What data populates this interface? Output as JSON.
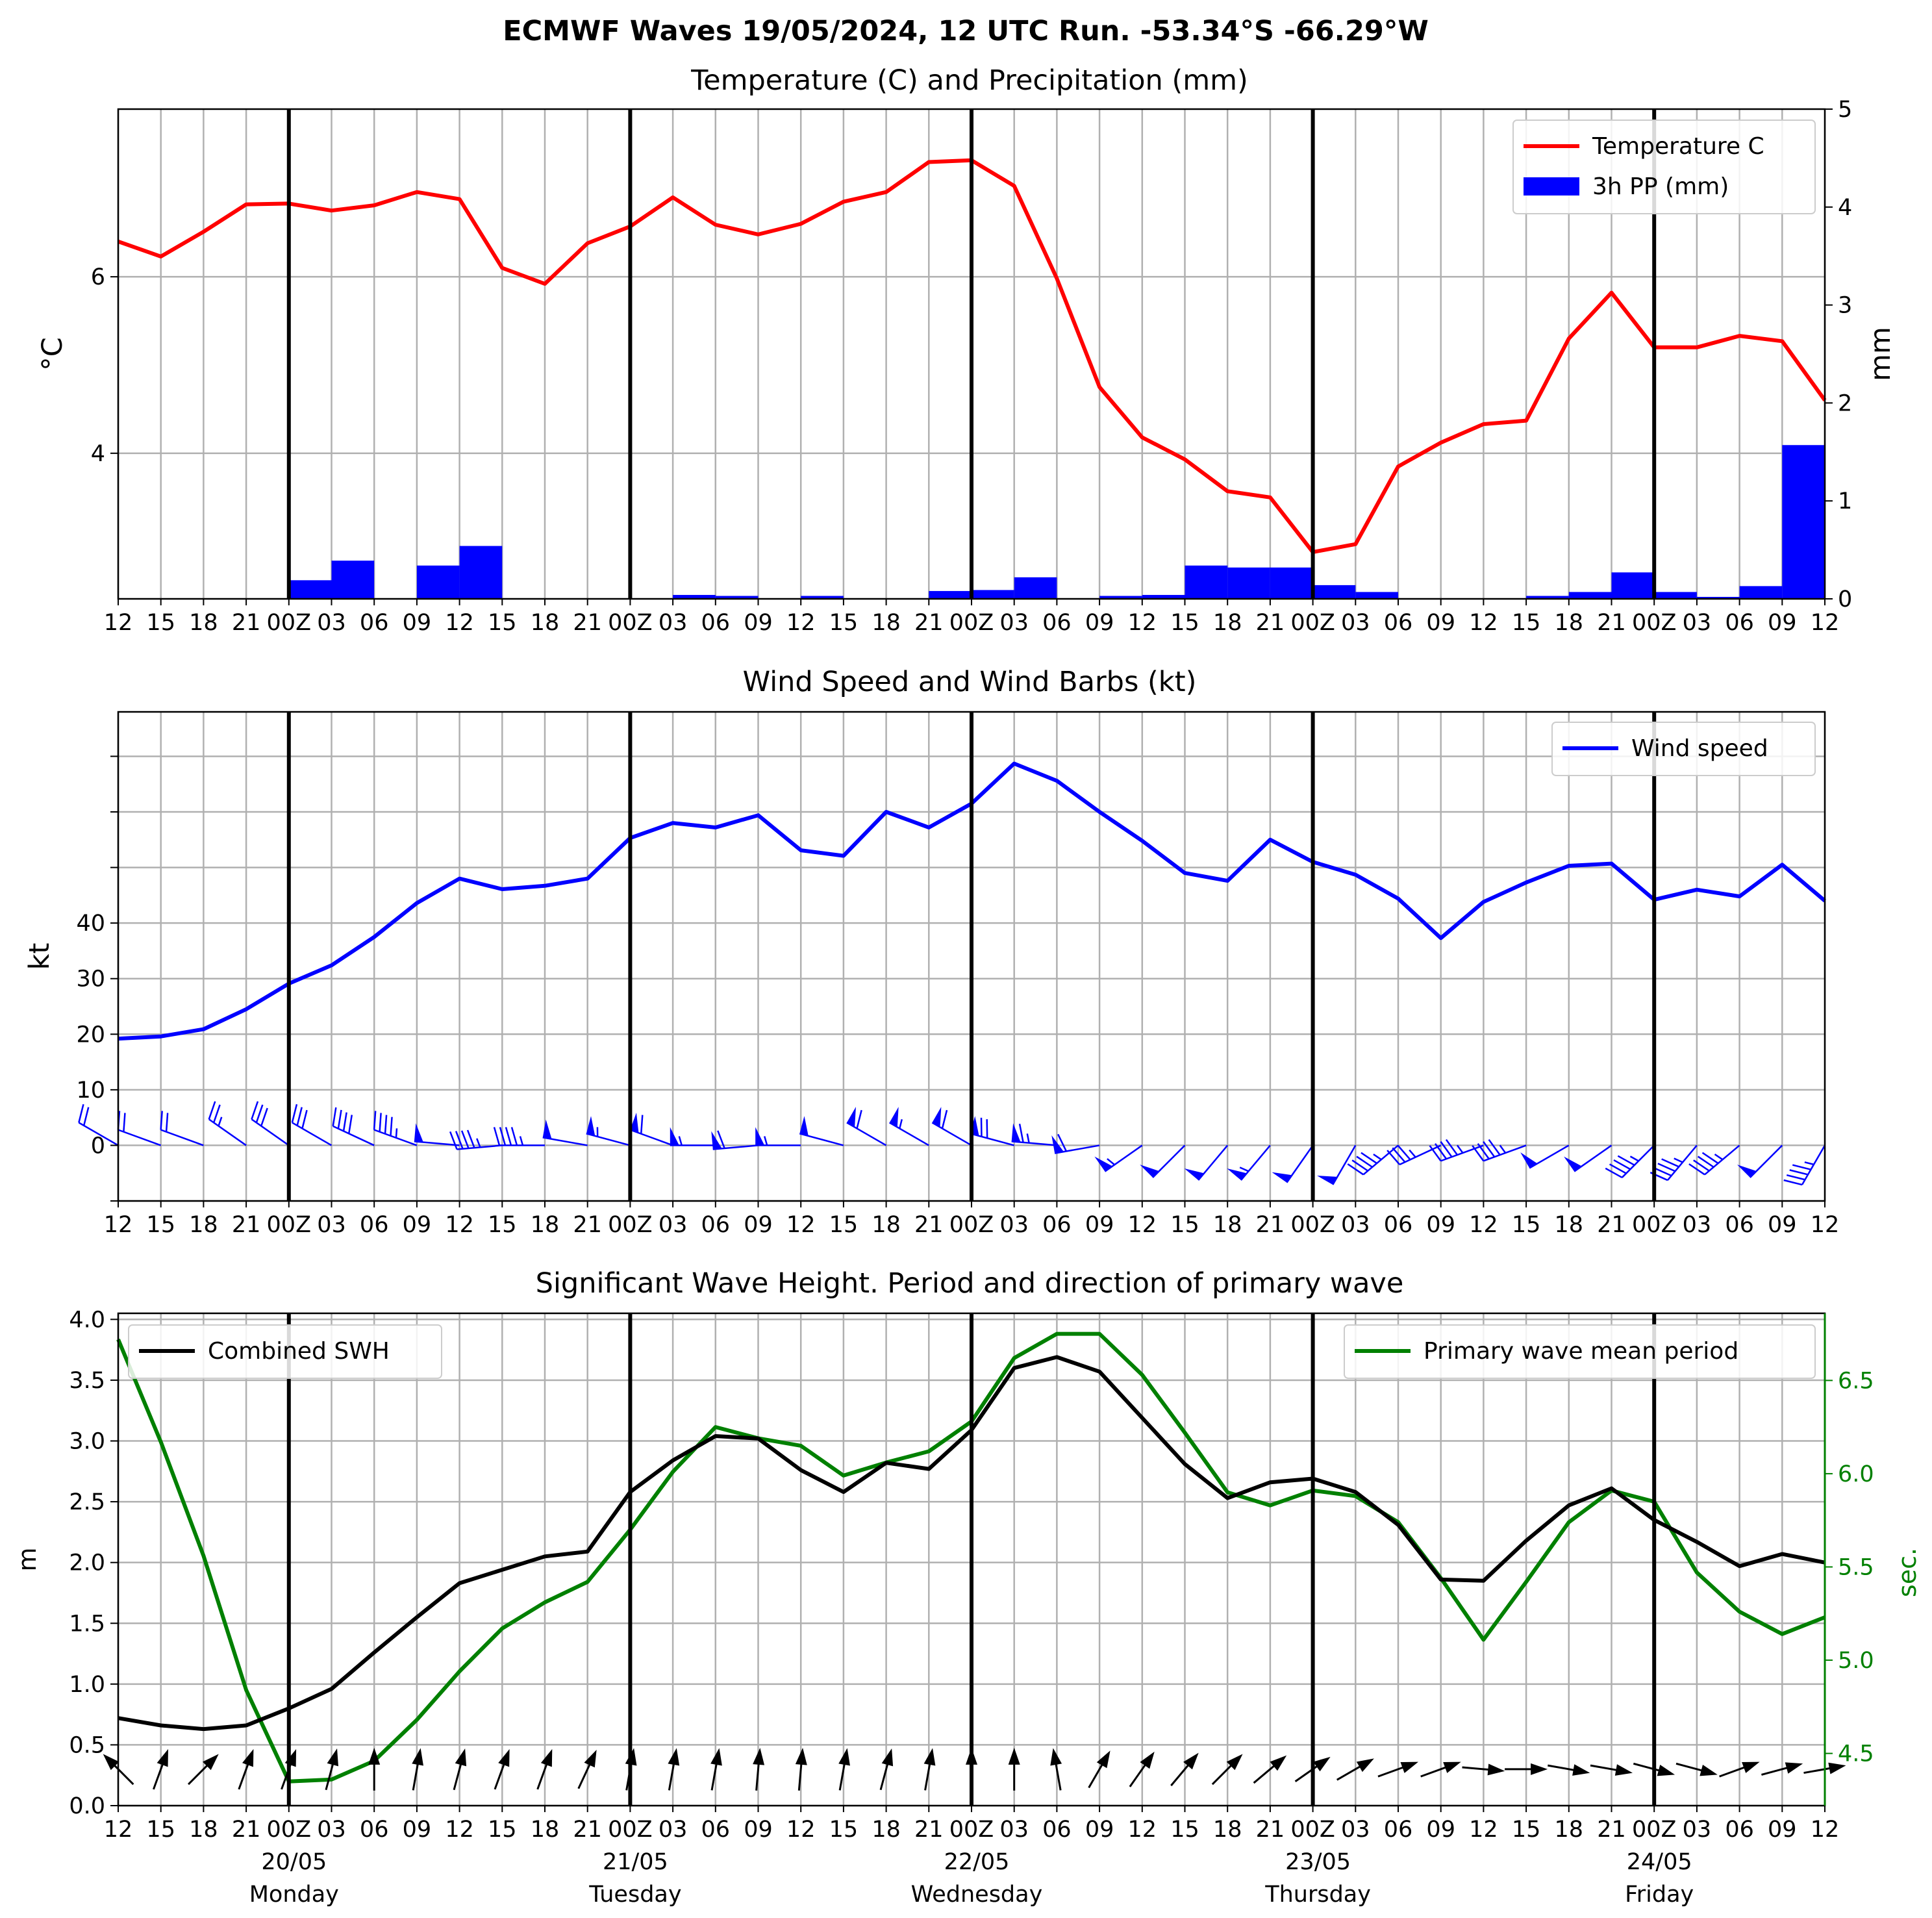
{
  "title": "ECMWF Waves 19/05/2024, 12 UTC Run. -53.34°S -66.29°W",
  "hour_ticks": [
    "12",
    "15",
    "18",
    "21",
    "00Z",
    "03",
    "06",
    "09",
    "12",
    "15",
    "18",
    "21",
    "00Z",
    "03",
    "06",
    "09",
    "12",
    "15",
    "18",
    "21",
    "00Z",
    "03",
    "06",
    "09",
    "12",
    "15",
    "18",
    "21",
    "00Z",
    "03",
    "06",
    "09",
    "12",
    "15",
    "18",
    "21",
    "00Z",
    "03",
    "06",
    "09",
    "12"
  ],
  "day_labels": [
    {
      "date": "20/05",
      "weekday": "Monday"
    },
    {
      "date": "21/05",
      "weekday": "Tuesday"
    },
    {
      "date": "22/05",
      "weekday": "Wednesday"
    },
    {
      "date": "23/05",
      "weekday": "Thursday"
    },
    {
      "date": "24/05",
      "weekday": "Friday"
    }
  ],
  "colors": {
    "temperature": "#ff0000",
    "precip": "#0000ff",
    "wind": "#0000ff",
    "swh": "#000000",
    "period": "#008000",
    "grid": "#b0b0b0"
  },
  "chart_data": [
    {
      "type": "line",
      "title": "Temperature (C) and Precipitation (mm)",
      "ylabel": "°C",
      "y2label": "mm",
      "ylim": [
        2.35,
        7.9
      ],
      "yticks": [
        4,
        6
      ],
      "y2lim": [
        0,
        5
      ],
      "y2ticks": [
        0,
        1,
        2,
        3,
        4,
        5
      ],
      "legend_position": "top-right",
      "series": [
        {
          "name": "Temperature C",
          "kind": "line",
          "axis": "left",
          "values": [
            6.4,
            6.23,
            6.51,
            6.82,
            6.83,
            6.75,
            6.81,
            6.96,
            6.88,
            6.1,
            5.92,
            6.38,
            6.57,
            6.9,
            6.59,
            6.48,
            6.6,
            6.85,
            6.96,
            7.3,
            7.32,
            7.03,
            5.98,
            4.75,
            4.18,
            3.93,
            3.57,
            3.5,
            2.88,
            2.97,
            3.85,
            4.12,
            4.33,
            4.37,
            5.3,
            5.82,
            5.2,
            5.2,
            5.33,
            5.27,
            4.6
          ]
        },
        {
          "name": "3h PP (mm)",
          "kind": "bar",
          "axis": "right",
          "values": [
            0,
            0,
            0,
            0,
            0.19,
            0.39,
            0,
            0.34,
            0.54,
            0,
            0,
            0,
            0,
            0.04,
            0.03,
            0,
            0.03,
            0,
            0,
            0.08,
            0.09,
            0.22,
            0,
            0.03,
            0.04,
            0.34,
            0.32,
            0.32,
            0.14,
            0.07,
            0,
            0,
            0,
            0.03,
            0.07,
            0.27,
            0.07,
            0.02,
            0.13,
            1.57
          ]
        }
      ]
    },
    {
      "type": "line",
      "title": "Wind Speed and Wind Barbs (kt)",
      "ylabel": "kt",
      "ylim": [
        -10,
        78
      ],
      "yticks": [
        0,
        10,
        20,
        30,
        40
      ],
      "legend_position": "top-right",
      "series": [
        {
          "name": "Wind speed",
          "values": [
            19.2,
            19.6,
            20.9,
            24.5,
            29.1,
            32.4,
            37.5,
            43.6,
            48,
            46.1,
            46.7,
            48,
            55.3,
            58,
            57.2,
            59.4,
            53.1,
            52.1,
            60,
            57.2,
            61.5,
            68.7,
            65.6,
            60,
            54.8,
            49,
            47.6,
            55,
            51,
            48.7,
            44.4,
            37.3,
            43.8,
            47.3,
            50.3,
            50.7,
            44.2,
            46,
            44.8,
            50.5,
            44
          ]
        },
        {
          "name": "Wind barbs",
          "kind": "barbs",
          "direction_deg": [
            300,
            290,
            290,
            305,
            305,
            300,
            295,
            290,
            275,
            265,
            270,
            280,
            285,
            290,
            270,
            265,
            270,
            285,
            300,
            300,
            300,
            285,
            275,
            260,
            235,
            225,
            220,
            220,
            215,
            210,
            230,
            245,
            250,
            250,
            240,
            235,
            225,
            220,
            230,
            225,
            210
          ],
          "speed_kt": [
            19.2,
            19.6,
            20.9,
            24.5,
            29.1,
            32.4,
            37.5,
            43.6,
            48,
            46.1,
            46.7,
            48,
            55.3,
            58,
            57.2,
            59.4,
            53.1,
            52.1,
            60,
            57.2,
            61.5,
            68.7,
            65.6,
            60,
            54.8,
            49,
            47.6,
            55,
            51,
            48.7,
            44.4,
            37.3,
            43.8,
            47.3,
            50.3,
            50.7,
            44.2,
            46,
            44.8,
            50.5,
            44
          ]
        }
      ]
    },
    {
      "type": "line",
      "title": "Significant Wave Height. Period and direction of primary wave",
      "ylabel": "m",
      "y2label": "sec.",
      "ylim": [
        0,
        4.05
      ],
      "yticks": [
        0.0,
        0.5,
        1.0,
        1.5,
        2.0,
        2.5,
        3.0,
        3.5,
        4.0
      ],
      "y2lim": [
        4.22,
        6.86
      ],
      "y2ticks": [
        4.5,
        5.0,
        5.5,
        6.0,
        6.5
      ],
      "legend_positions": {
        "Combined SWH": "top-left",
        "Primary wave mean period": "top-right"
      },
      "series": [
        {
          "name": "Combined SWH",
          "axis": "left",
          "values": [
            0.72,
            0.66,
            0.63,
            0.66,
            0.8,
            0.96,
            1.26,
            1.55,
            1.83,
            1.94,
            2.05,
            2.09,
            2.58,
            2.84,
            3.04,
            3.02,
            2.76,
            2.58,
            2.82,
            2.77,
            3.09,
            3.6,
            3.69,
            3.57,
            3.19,
            2.81,
            2.53,
            2.66,
            2.69,
            2.58,
            2.31,
            1.86,
            1.85,
            2.18,
            2.47,
            2.61,
            2.35,
            2.17,
            1.97,
            2.07,
            2
          ]
        },
        {
          "name": "Primary wave mean period",
          "axis": "right",
          "values": [
            6.72,
            6.17,
            5.56,
            4.84,
            4.35,
            4.36,
            4.46,
            4.68,
            4.94,
            5.17,
            5.31,
            5.42,
            5.7,
            6.01,
            6.25,
            6.19,
            6.15,
            5.99,
            6.06,
            6.12,
            6.28,
            6.62,
            6.75,
            6.75,
            6.53,
            6.22,
            5.9,
            5.83,
            5.91,
            5.88,
            5.74,
            5.44,
            5.11,
            5.42,
            5.74,
            5.91,
            5.85,
            5.47,
            5.26,
            5.14,
            5.23
          ]
        },
        {
          "name": "Primary wave direction",
          "kind": "arrows",
          "direction_deg": [
            135,
            200,
            225,
            200,
            200,
            195,
            180,
            190,
            195,
            200,
            200,
            205,
            190,
            190,
            190,
            185,
            185,
            190,
            195,
            190,
            180,
            180,
            170,
            210,
            215,
            220,
            225,
            230,
            235,
            240,
            250,
            250,
            275,
            270,
            280,
            280,
            285,
            285,
            250,
            255,
            260
          ]
        }
      ]
    }
  ]
}
